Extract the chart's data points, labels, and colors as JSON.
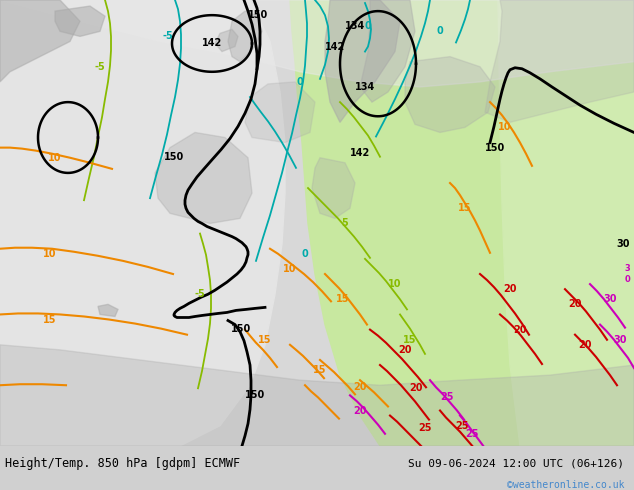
{
  "title_left": "Height/Temp. 850 hPa [gdpm] ECMWF",
  "title_right": "Su 09-06-2024 12:00 UTC (06+126)",
  "watermark": "©weatheronline.co.uk",
  "watermark_color": "#4488cc",
  "figsize": [
    6.34,
    4.9
  ],
  "dpi": 100,
  "font_size_title": 8.5,
  "font_size_labels": 7,
  "font_size_watermark": 7,
  "bg_sea": "#d8d8d8",
  "bg_land_light": "#e8e8e8",
  "bg_green_light": "#c8e8a0",
  "bg_green_mid": "#b0d878",
  "bg_gray_land": "#a8a8a8",
  "black_lw": 2.0,
  "cyan_color": "#00aaaa",
  "cyan_lw": 1.3,
  "green_color": "#88bb00",
  "green_lw": 1.3,
  "orange_color": "#ee8800",
  "orange_lw": 1.5,
  "red_color": "#cc0000",
  "red_lw": 1.5,
  "magenta_color": "#cc00bb",
  "magenta_lw": 1.5
}
